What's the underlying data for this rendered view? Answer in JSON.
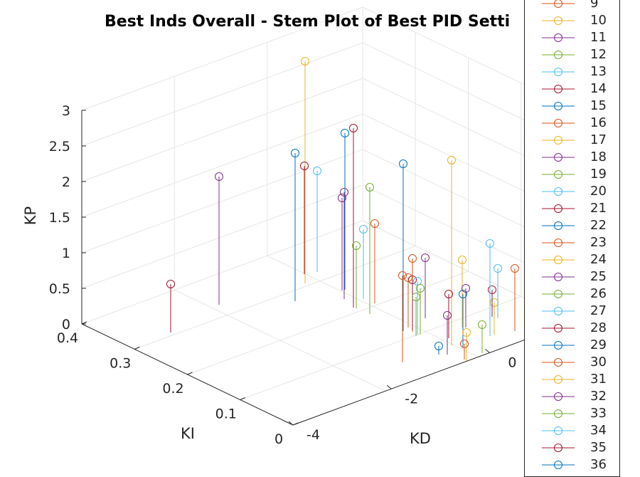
{
  "chart_data": {
    "type": "scatter",
    "subtype": "stem3",
    "title": "Best Inds Overall - Stem Plot of Best PID Setti",
    "xlabel": "KD",
    "ylabel": "KI",
    "zlabel": "KP",
    "xticks": [
      "-4",
      "-2",
      "0"
    ],
    "yticks": [
      "0",
      "0.1",
      "0.2",
      "0.3",
      "0.4"
    ],
    "zticks": [
      "0",
      "0.5",
      "1",
      "1.5",
      "2",
      "2.5",
      "3"
    ],
    "zlim": [
      0,
      3
    ],
    "ylim": [
      0,
      0.4
    ],
    "grid": true,
    "legend_placement": "right",
    "series": [
      {
        "name": "9",
        "color": "#D95319"
      },
      {
        "name": "10",
        "color": "#EDB120"
      },
      {
        "name": "11",
        "color": "#7E2F8E"
      },
      {
        "name": "12",
        "color": "#77AC30"
      },
      {
        "name": "13",
        "color": "#4DBEEE"
      },
      {
        "name": "14",
        "color": "#A2142F"
      },
      {
        "name": "15",
        "color": "#0072BD"
      },
      {
        "name": "16",
        "color": "#D95319"
      },
      {
        "name": "17",
        "color": "#EDB120"
      },
      {
        "name": "18",
        "color": "#7E2F8E"
      },
      {
        "name": "19",
        "color": "#77AC30"
      },
      {
        "name": "20",
        "color": "#4DBEEE"
      },
      {
        "name": "21",
        "color": "#A2142F"
      },
      {
        "name": "22",
        "color": "#0072BD"
      },
      {
        "name": "23",
        "color": "#D95319"
      },
      {
        "name": "24",
        "color": "#EDB120"
      },
      {
        "name": "25",
        "color": "#7E2F8E"
      },
      {
        "name": "26",
        "color": "#77AC30"
      },
      {
        "name": "27",
        "color": "#4DBEEE"
      },
      {
        "name": "28",
        "color": "#A2142F"
      },
      {
        "name": "29",
        "color": "#0072BD"
      },
      {
        "name": "30",
        "color": "#D95319"
      },
      {
        "name": "31",
        "color": "#EDB120"
      },
      {
        "name": "32",
        "color": "#7E2F8E"
      },
      {
        "name": "33",
        "color": "#77AC30"
      },
      {
        "name": "34",
        "color": "#4DBEEE"
      },
      {
        "name": "35",
        "color": "#A2142F"
      },
      {
        "name": "36",
        "color": "#0072BD"
      }
    ],
    "points": [
      {
        "kp": 0.68,
        "color": "#A2142F"
      },
      {
        "kp": 1.8,
        "color": "#7E2F8E"
      },
      {
        "kp": 2.08,
        "color": "#0072BD"
      },
      {
        "kp": 3.12,
        "color": "#EDB120"
      },
      {
        "kp": 1.52,
        "color": "#A2142F"
      },
      {
        "kp": 1.42,
        "color": "#4DBEEE"
      },
      {
        "kp": 2.2,
        "color": "#0072BD"
      },
      {
        "kp": 2.52,
        "color": "#A2142F"
      },
      {
        "kp": 1.5,
        "color": "#7E2F8E"
      },
      {
        "kp": 1.3,
        "color": "#7E2F8E"
      },
      {
        "kp": 1.78,
        "color": "#77AC30"
      },
      {
        "kp": 0.98,
        "color": "#4DBEEE"
      },
      {
        "kp": 0.88,
        "color": "#77AC30"
      },
      {
        "kp": 1.12,
        "color": "#D95319"
      },
      {
        "kp": 2.35,
        "color": "#0072BD"
      },
      {
        "kp": 1.22,
        "color": "#D95319"
      },
      {
        "kp": 1.03,
        "color": "#D95319"
      },
      {
        "kp": 2.6,
        "color": "#EDB120"
      },
      {
        "kp": 0.7,
        "color": "#A2142F"
      },
      {
        "kp": 0.75,
        "color": "#4DBEEE"
      },
      {
        "kp": 0.85,
        "color": "#7E2F8E"
      },
      {
        "kp": 0.65,
        "color": "#77AC30"
      },
      {
        "kp": 0.55,
        "color": "#77AC30"
      },
      {
        "kp": 0.7,
        "color": "#D95319"
      },
      {
        "kp": 0.62,
        "color": "#A2142F"
      },
      {
        "kp": 0.55,
        "color": "#7E2F8E"
      },
      {
        "kp": 0.95,
        "color": "#EDB120"
      },
      {
        "kp": 0.75,
        "color": "#0072BD"
      },
      {
        "kp": 0.55,
        "color": "#7E2F8E"
      },
      {
        "kp": 0.12,
        "color": "#0072BD"
      },
      {
        "kp": 0.4,
        "color": "#EDB120"
      },
      {
        "kp": 0.22,
        "color": "#D95319"
      },
      {
        "kp": 0.45,
        "color": "#EDB120"
      },
      {
        "kp": 0.4,
        "color": "#77AC30"
      },
      {
        "kp": 0.38,
        "color": "#A2142F"
      },
      {
        "kp": 1.3,
        "color": "#4DBEEE"
      },
      {
        "kp": 0.7,
        "color": "#4DBEEE"
      },
      {
        "kp": 0.88,
        "color": "#D95319"
      }
    ]
  }
}
